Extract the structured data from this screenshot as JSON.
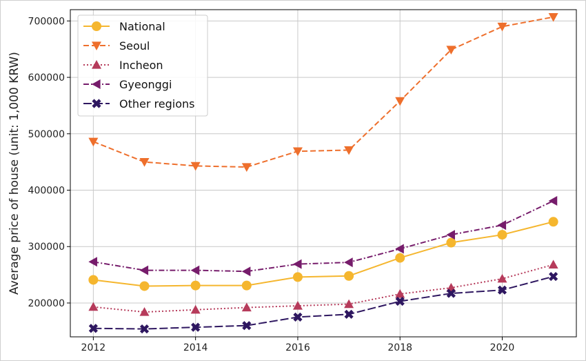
{
  "chart_data": {
    "type": "line",
    "title": "",
    "xlabel": "",
    "ylabel": "Average price of house (unit: 1,000 KRW)",
    "x": [
      2012,
      2013,
      2014,
      2015,
      2016,
      2017,
      2018,
      2019,
      2020,
      2021
    ],
    "xlim": [
      2011.55,
      2021.45
    ],
    "ylim": [
      140000,
      720000
    ],
    "xticks": [
      2012,
      2014,
      2016,
      2018,
      2020
    ],
    "yticks": [
      200000,
      300000,
      400000,
      500000,
      600000,
      700000
    ],
    "grid": true,
    "legend_position": "top-left",
    "series": [
      {
        "name": "National",
        "color": "#f5b62e",
        "dash": "solid",
        "marker": "circle",
        "values": [
          241000,
          230000,
          231000,
          231000,
          246000,
          248000,
          280000,
          307000,
          321000,
          344000
        ]
      },
      {
        "name": "Seoul",
        "color": "#ee6f2c",
        "dash": "dashed",
        "marker": "triangle-down",
        "values": [
          486000,
          450000,
          443000,
          441000,
          469000,
          471000,
          558000,
          649000,
          690000,
          707000
        ]
      },
      {
        "name": "Incheon",
        "color": "#b63b5b",
        "dash": "dotted",
        "marker": "triangle-up",
        "values": [
          193000,
          184000,
          188000,
          192000,
          195000,
          198000,
          216000,
          227000,
          243000,
          268000
        ]
      },
      {
        "name": "Gyeonggi",
        "color": "#761c6b",
        "dash": "dashdot",
        "marker": "triangle-left",
        "values": [
          273000,
          258000,
          258000,
          256000,
          269000,
          272000,
          296000,
          321000,
          338000,
          381000
        ]
      },
      {
        "name": "Other regions",
        "color": "#2e1760",
        "dash": "longdash",
        "marker": "x",
        "values": [
          155000,
          154000,
          157000,
          160000,
          175000,
          180000,
          203000,
          217000,
          223000,
          247000
        ]
      }
    ]
  }
}
